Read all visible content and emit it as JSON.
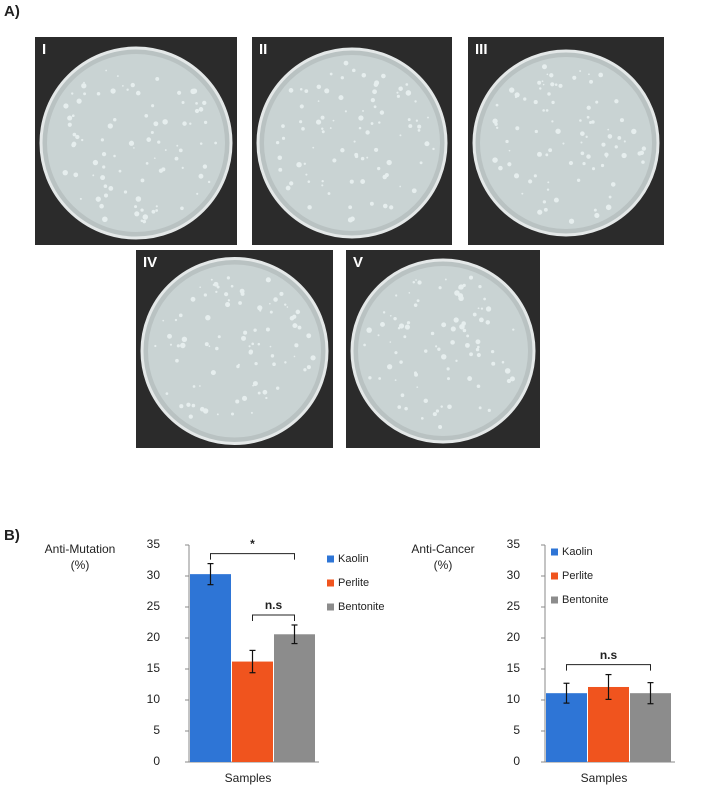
{
  "figure": {
    "panel_a_label": "A)",
    "plates": [
      "I",
      "II",
      "III",
      "IV",
      "V"
    ],
    "panel_b_label": "B)"
  },
  "chart_data": [
    {
      "type": "bar",
      "ylabel": [
        "Anti-Mutation",
        "(%)"
      ],
      "xlabel": "Samples",
      "ylim": [
        0,
        35
      ],
      "yticks": [
        0,
        5,
        10,
        15,
        20,
        25,
        30,
        35
      ],
      "grid": false,
      "legend": "right",
      "series": [
        {
          "name": "Kaolin",
          "color": "#2e75d6",
          "values": [
            30.3
          ],
          "errors": [
            1.7
          ]
        },
        {
          "name": "Perlite",
          "color": "#f0541e",
          "values": [
            16.2
          ],
          "errors": [
            1.8
          ]
        },
        {
          "name": "Bentonite",
          "color": "#8c8c8c",
          "values": [
            20.6
          ],
          "errors": [
            1.5
          ]
        }
      ],
      "annotations": [
        {
          "text": "*",
          "between": [
            0,
            2
          ]
        },
        {
          "text": "n.s",
          "between": [
            1,
            2
          ]
        }
      ]
    },
    {
      "type": "bar",
      "ylabel": [
        "Anti-Cancer",
        "(%)"
      ],
      "xlabel": "Samples",
      "ylim": [
        0,
        35
      ],
      "yticks": [
        0,
        5,
        10,
        15,
        20,
        25,
        30,
        35
      ],
      "grid": false,
      "legend": "right",
      "series": [
        {
          "name": "Kaolin",
          "color": "#2e75d6",
          "values": [
            11.1
          ],
          "errors": [
            1.6
          ]
        },
        {
          "name": "Perlite",
          "color": "#f0541e",
          "values": [
            12.1
          ],
          "errors": [
            2.0
          ]
        },
        {
          "name": "Bentonite",
          "color": "#8c8c8c",
          "values": [
            11.1
          ],
          "errors": [
            1.7
          ]
        }
      ],
      "annotations": [
        {
          "text": "n.s",
          "between": [
            0,
            2
          ]
        }
      ]
    }
  ]
}
